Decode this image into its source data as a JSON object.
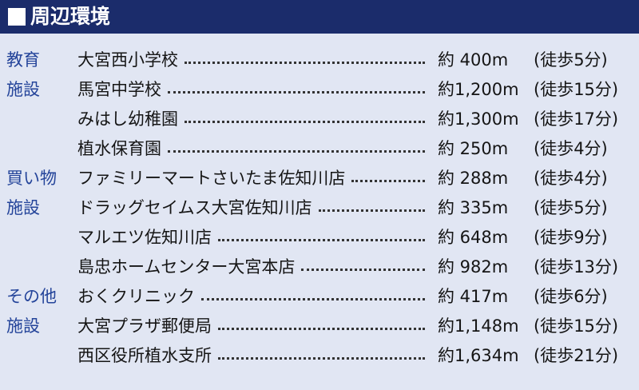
{
  "header": {
    "title": "周辺環境"
  },
  "table": {
    "rows": [
      {
        "category": "教育",
        "name": "大宮西小学校",
        "distance": "約 400m",
        "walk": "(徒歩5分)"
      },
      {
        "category": "施設",
        "name": "馬宮中学校",
        "distance": "約1,200m",
        "walk": "(徒歩15分)"
      },
      {
        "name": "みはし幼稚園",
        "distance": "約1,300m",
        "walk": "(徒歩17分)"
      },
      {
        "name": "植水保育園",
        "distance": "約 250m",
        "walk": "(徒歩4分)"
      },
      {
        "category": "買い物",
        "name": "ファミリーマートさいたま佐知川店",
        "distance": "約 288m",
        "walk": "(徒歩4分)"
      },
      {
        "category": "施設",
        "name": "ドラッグセイムス大宮佐知川店",
        "distance": "約 335m",
        "walk": "(徒歩5分)"
      },
      {
        "name": "マルエツ佐知川店",
        "distance": "約 648m",
        "walk": "(徒歩9分)"
      },
      {
        "name": "島忠ホームセンター大宮本店",
        "distance": "約 982m",
        "walk": "(徒歩13分)"
      },
      {
        "category": "その他",
        "name": "おくクリニック",
        "distance": "約 417m",
        "walk": "(徒歩6分)"
      },
      {
        "category": "施設",
        "name": "大宮プラザ郵便局",
        "distance": "約1,148m",
        "walk": "(徒歩15分)"
      },
      {
        "name": "西区役所植水支所",
        "distance": "約1,634m",
        "walk": "(徒歩21分)"
      }
    ]
  }
}
